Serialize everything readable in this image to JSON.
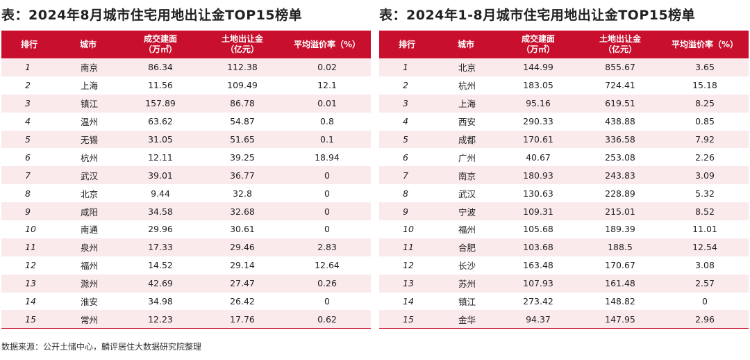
{
  "left": {
    "title": "表：2024年8月城市住宅用地出让金TOP15榜单",
    "headers": [
      "排行",
      "城市",
      "成交建面\n（万㎡）",
      "土地出让金\n（亿元）",
      "平均溢价率（%）"
    ],
    "rows": [
      [
        "1",
        "南京",
        "86.34",
        "112.38",
        "0.02"
      ],
      [
        "2",
        "上海",
        "11.56",
        "109.49",
        "12.1"
      ],
      [
        "3",
        "镇江",
        "157.89",
        "86.78",
        "0.01"
      ],
      [
        "4",
        "温州",
        "63.62",
        "54.87",
        "0.8"
      ],
      [
        "5",
        "无锡",
        "31.05",
        "51.65",
        "0.1"
      ],
      [
        "6",
        "杭州",
        "12.11",
        "39.25",
        "18.94"
      ],
      [
        "7",
        "武汉",
        "39.01",
        "36.77",
        "0"
      ],
      [
        "8",
        "北京",
        "9.44",
        "32.8",
        "0"
      ],
      [
        "9",
        "咸阳",
        "34.58",
        "32.68",
        "0"
      ],
      [
        "10",
        "南通",
        "29.96",
        "30.61",
        "0"
      ],
      [
        "11",
        "泉州",
        "17.33",
        "29.46",
        "2.83"
      ],
      [
        "12",
        "福州",
        "14.52",
        "29.14",
        "12.64"
      ],
      [
        "13",
        "滁州",
        "42.69",
        "27.47",
        "0.26"
      ],
      [
        "14",
        "淮安",
        "34.98",
        "26.42",
        "0"
      ],
      [
        "15",
        "常州",
        "12.23",
        "17.76",
        "0.62"
      ]
    ]
  },
  "right": {
    "title": "表：2024年1-8月城市住宅用地出让金TOP15榜单",
    "headers": [
      "排行",
      "城市",
      "成交建面\n（万㎡）",
      "土地出让金\n（亿元）",
      "平均溢价率（%）"
    ],
    "rows": [
      [
        "1",
        "北京",
        "144.99",
        "855.67",
        "3.65"
      ],
      [
        "2",
        "杭州",
        "183.05",
        "724.41",
        "15.18"
      ],
      [
        "3",
        "上海",
        "95.16",
        "619.51",
        "8.25"
      ],
      [
        "4",
        "西安",
        "290.33",
        "438.88",
        "0.85"
      ],
      [
        "5",
        "成都",
        "170.61",
        "336.58",
        "7.92"
      ],
      [
        "6",
        "广州",
        "40.67",
        "253.08",
        "2.26"
      ],
      [
        "7",
        "南京",
        "180.93",
        "243.83",
        "3.09"
      ],
      [
        "8",
        "武汉",
        "130.63",
        "228.89",
        "5.32"
      ],
      [
        "9",
        "宁波",
        "109.31",
        "215.01",
        "8.52"
      ],
      [
        "10",
        "福州",
        "105.68",
        "189.39",
        "11.01"
      ],
      [
        "11",
        "合肥",
        "103.68",
        "188.5",
        "12.54"
      ],
      [
        "12",
        "长沙",
        "163.48",
        "170.67",
        "3.08"
      ],
      [
        "13",
        "苏州",
        "107.93",
        "161.48",
        "2.57"
      ],
      [
        "14",
        "镇江",
        "273.42",
        "148.82",
        "0"
      ],
      [
        "15",
        "金华",
        "94.37",
        "147.95",
        "2.96"
      ]
    ]
  },
  "source": "数据来源：公开土储中心，麟评居住大数据研究院整理",
  "colors": {
    "header_bg": "#c8102e",
    "stripe_bg": "#fbeaec"
  }
}
